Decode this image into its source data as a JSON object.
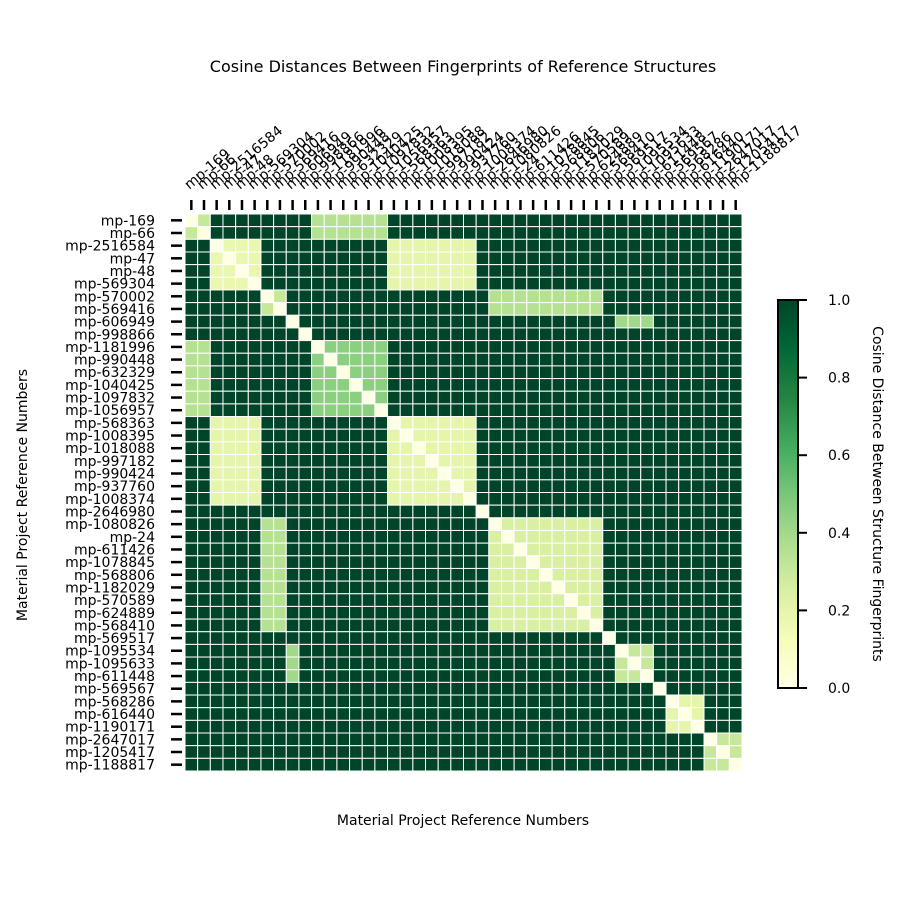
{
  "chart_data": {
    "type": "heatmap",
    "title": "Cosine Distances Between Fingerprints of Reference Structures",
    "xlabel": "Material Project Reference Numbers",
    "ylabel": "Material Project Reference Numbers",
    "colorbar": {
      "label": "Cosine Distance Between Structure Fingerprints",
      "range": [
        0.0,
        1.0
      ],
      "ticks": [
        "0.0",
        "0.2",
        "0.4",
        "0.6",
        "0.8",
        "1.0"
      ],
      "colors": [
        "#ffffe5",
        "#f7fcb9",
        "#d9f0a3",
        "#addd8e",
        "#78c679",
        "#41ab5d",
        "#238443",
        "#006837",
        "#004529"
      ]
    },
    "labels": [
      "mp-169",
      "mp-66",
      "mp-2516584",
      "mp-47",
      "mp-48",
      "mp-569304",
      "mp-570002",
      "mp-569416",
      "mp-606949",
      "mp-998866",
      "mp-1181996",
      "mp-990448",
      "mp-632329",
      "mp-1040425",
      "mp-1097832",
      "mp-1056957",
      "mp-568363",
      "mp-1008395",
      "mp-1018088",
      "mp-997182",
      "mp-990424",
      "mp-937760",
      "mp-1008374",
      "mp-2646980",
      "mp-1080826",
      "mp-24",
      "mp-611426",
      "mp-1078845",
      "mp-568806",
      "mp-1182029",
      "mp-570589",
      "mp-624889",
      "mp-568410",
      "mp-569517",
      "mp-1095534",
      "mp-1095633",
      "mp-611448",
      "mp-569567",
      "mp-568286",
      "mp-616440",
      "mp-1190171",
      "mp-2647017",
      "mp-1205417",
      "mp-1188817"
    ],
    "blocks": [
      {
        "name": "A",
        "members": [
          0,
          1
        ]
      },
      {
        "name": "B",
        "members": [
          2,
          3,
          4,
          5
        ]
      },
      {
        "name": "C",
        "members": [
          6,
          7
        ]
      },
      {
        "name": "D",
        "members": [
          8
        ]
      },
      {
        "name": "E",
        "members": [
          9
        ]
      },
      {
        "name": "F",
        "members": [
          10,
          11,
          12,
          13,
          14,
          15
        ]
      },
      {
        "name": "G",
        "members": [
          16,
          17,
          18,
          19,
          20,
          21,
          22
        ]
      },
      {
        "name": "H",
        "members": [
          23
        ]
      },
      {
        "name": "I",
        "members": [
          24,
          25,
          26,
          27,
          28,
          29,
          30,
          31,
          32
        ]
      },
      {
        "name": "J",
        "members": [
          33
        ]
      },
      {
        "name": "K",
        "members": [
          34,
          35,
          36
        ]
      },
      {
        "name": "L",
        "members": [
          37
        ]
      },
      {
        "name": "M",
        "members": [
          38,
          39,
          40
        ]
      },
      {
        "name": "N",
        "members": [
          41,
          42,
          43
        ]
      }
    ],
    "block_distances": [
      {
        "a": "A",
        "b": "A",
        "value": 0.3
      },
      {
        "a": "A",
        "b": "F",
        "value": 0.35
      },
      {
        "a": "B",
        "b": "B",
        "value": 0.18
      },
      {
        "a": "B",
        "b": "G",
        "value": 0.2
      },
      {
        "a": "C",
        "b": "C",
        "value": 0.3
      },
      {
        "a": "C",
        "b": "I",
        "value": 0.35
      },
      {
        "a": "D",
        "b": "K",
        "value": 0.4
      },
      {
        "a": "F",
        "b": "F",
        "value": 0.45
      },
      {
        "a": "G",
        "b": "G",
        "value": 0.2
      },
      {
        "a": "I",
        "b": "I",
        "value": 0.25
      },
      {
        "a": "K",
        "b": "K",
        "value": 0.3
      },
      {
        "a": "M",
        "b": "M",
        "value": 0.2
      },
      {
        "a": "N",
        "b": "N",
        "value": 0.3
      }
    ],
    "default_value": 1.0,
    "diagonal_value": 0.0
  }
}
